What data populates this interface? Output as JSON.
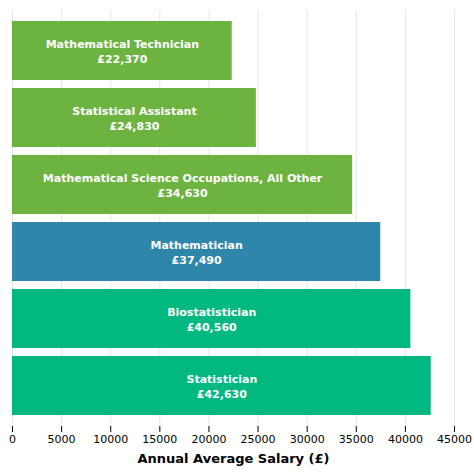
{
  "chart_data": {
    "type": "bar",
    "orientation": "horizontal",
    "categories": [
      "Statistician",
      "Biostatistician",
      "Mathematician",
      "Mathematical Science Occupations, All Other",
      "Statistical Assistant",
      "Mathematical Technician"
    ],
    "values": [
      42630,
      40560,
      37490,
      34630,
      24830,
      22370
    ],
    "value_labels": [
      "Statistician\n£42,630",
      "Biostatistician\n£40,560",
      "Mathematician\n£37,490",
      "Mathematical Science Occupations, All Other\n£34,630",
      "Statistical Assistant\n£24,830",
      "Mathematical Technician\n£22,370"
    ],
    "colors": [
      "#00b880",
      "#00b880",
      "#2e86ab",
      "#6db33f",
      "#6db33f",
      "#6db33f"
    ],
    "xlabel": "Annual Average Salary (£)",
    "xlim": [
      0,
      45000
    ],
    "xticks": [
      0,
      5000,
      10000,
      15000,
      20000,
      25000,
      30000,
      35000,
      40000,
      45000
    ],
    "grid": true,
    "tick_labels": "x"
  }
}
